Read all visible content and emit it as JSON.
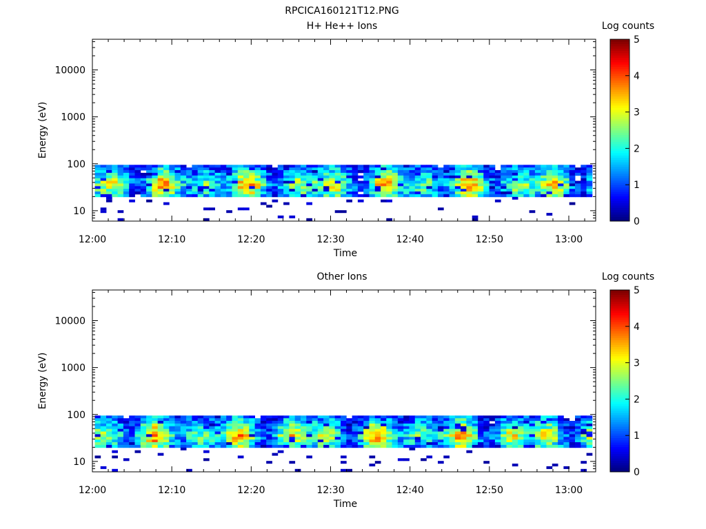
{
  "figure": {
    "title": "RPCICA160121T12.PNG"
  },
  "colorbar": {
    "label": "Log counts",
    "ticks": [
      "0",
      "1",
      "2",
      "3",
      "4",
      "5"
    ],
    "range": [
      0,
      5
    ]
  },
  "chart_data": [
    {
      "type": "heatmap",
      "title": "H+ He++ Ions",
      "xlabel": "Time",
      "ylabel": "Energy (eV)",
      "x_ticks": [
        "12:00",
        "12:10",
        "12:20",
        "12:30",
        "12:40",
        "12:50",
        "13:00"
      ],
      "x_range": [
        "12:00",
        "13:03"
      ],
      "y_scale": "log",
      "y_ticks": [
        "10",
        "100",
        "1000",
        "10000"
      ],
      "y_range": [
        6,
        45000
      ],
      "z_label": "Log counts",
      "z_range": [
        0,
        5
      ],
      "colormap": "jet",
      "summary": {
        "populated_energy_band_eV": [
          20,
          95
        ],
        "peak_energy_eV": 35,
        "max_log_counts": 4.0,
        "sparse_low_counts_below_eV": 20
      }
    },
    {
      "type": "heatmap",
      "title": "Other Ions",
      "xlabel": "Time",
      "ylabel": "Energy (eV)",
      "x_ticks": [
        "12:00",
        "12:10",
        "12:20",
        "12:30",
        "12:40",
        "12:50",
        "13:00"
      ],
      "x_range": [
        "12:00",
        "13:03"
      ],
      "y_scale": "log",
      "y_ticks": [
        "10",
        "100",
        "1000",
        "10000"
      ],
      "y_range": [
        6,
        45000
      ],
      "z_label": "Log counts",
      "z_range": [
        0,
        5
      ],
      "colormap": "jet",
      "summary": {
        "populated_energy_band_eV": [
          20,
          95
        ],
        "peak_energy_eV": 35,
        "max_log_counts": 4.0,
        "sparse_low_counts_below_eV": 20
      }
    }
  ]
}
